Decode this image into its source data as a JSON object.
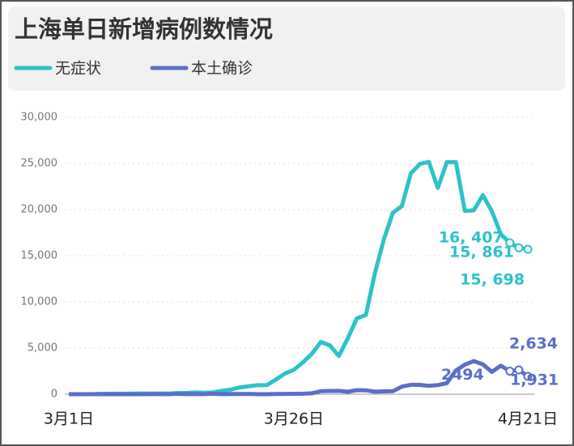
{
  "chart_data": {
    "type": "line",
    "title": "上海单日新增病例数情况",
    "categories": [
      "3月1日",
      null,
      null,
      null,
      null,
      null,
      null,
      null,
      null,
      null,
      null,
      null,
      null,
      null,
      null,
      null,
      null,
      null,
      null,
      null,
      null,
      null,
      null,
      null,
      null,
      "3月26日",
      null,
      null,
      null,
      null,
      null,
      null,
      null,
      null,
      null,
      null,
      null,
      null,
      null,
      null,
      null,
      null,
      null,
      null,
      null,
      null,
      null,
      null,
      null,
      null,
      null,
      "4月21日"
    ],
    "series": [
      {
        "name": "无症状",
        "color": "#2cc3c8",
        "values": [
          1,
          2,
          3,
          14,
          45,
          50,
          51,
          62,
          76,
          64,
          78,
          64,
          128,
          130,
          197,
          150,
          203,
          366,
          492,
          734,
          865,
          977,
          979,
          1580,
          2231,
          2631,
          3450,
          4381,
          5656,
          5298,
          4144,
          6051,
          8226,
          8581,
          13086,
          16766,
          19660,
          20398,
          23937,
          24944,
          25173,
          22348,
          25141,
          25146,
          19872,
          19923,
          21582,
          19831,
          17332,
          16407,
          15861,
          15698
        ],
        "value_labels": [
          null,
          null,
          null,
          null,
          null,
          null,
          null,
          null,
          null,
          null,
          null,
          null,
          null,
          null,
          null,
          null,
          null,
          null,
          null,
          null,
          null,
          null,
          null,
          null,
          null,
          null,
          null,
          null,
          null,
          null,
          null,
          null,
          null,
          null,
          null,
          null,
          null,
          null,
          null,
          null,
          null,
          null,
          null,
          null,
          null,
          null,
          null,
          null,
          null,
          "16, 407",
          "15, 861",
          "15, 698"
        ]
      },
      {
        "name": "本土确诊",
        "color": "#5a6fc8",
        "values": [
          0,
          2,
          3,
          2,
          0,
          3,
          4,
          3,
          4,
          11,
          5,
          1,
          41,
          9,
          5,
          8,
          57,
          8,
          17,
          24,
          31,
          4,
          4,
          29,
          38,
          45,
          50,
          96,
          326,
          355,
          358,
          260,
          438,
          425,
          268,
          311,
          322,
          824,
          1015,
          1006,
          914,
          994,
          1189,
          2573,
          3200,
          3590,
          3238,
          2417,
          3084,
          2494,
          2634,
          1931
        ],
        "value_labels": [
          null,
          null,
          null,
          null,
          null,
          null,
          null,
          null,
          null,
          null,
          null,
          null,
          null,
          null,
          null,
          null,
          null,
          null,
          null,
          null,
          null,
          null,
          null,
          null,
          null,
          null,
          null,
          null,
          null,
          null,
          null,
          null,
          null,
          null,
          null,
          null,
          null,
          null,
          null,
          null,
          null,
          null,
          null,
          null,
          null,
          null,
          null,
          null,
          null,
          "2494",
          "2,634",
          "1,931"
        ]
      }
    ],
    "ylim": [
      0,
      30000
    ],
    "yticks": [
      0,
      {
        "value": 5000,
        "label": "5,000"
      },
      {
        "value": 10000,
        "label": "10,000"
      },
      {
        "value": 15000,
        "label": "15,000"
      },
      {
        "value": 20000,
        "label": "20,000"
      },
      {
        "value": 25000,
        "label": "25,000"
      },
      {
        "value": 30000,
        "label": "30,000"
      }
    ],
    "grid": true
  }
}
